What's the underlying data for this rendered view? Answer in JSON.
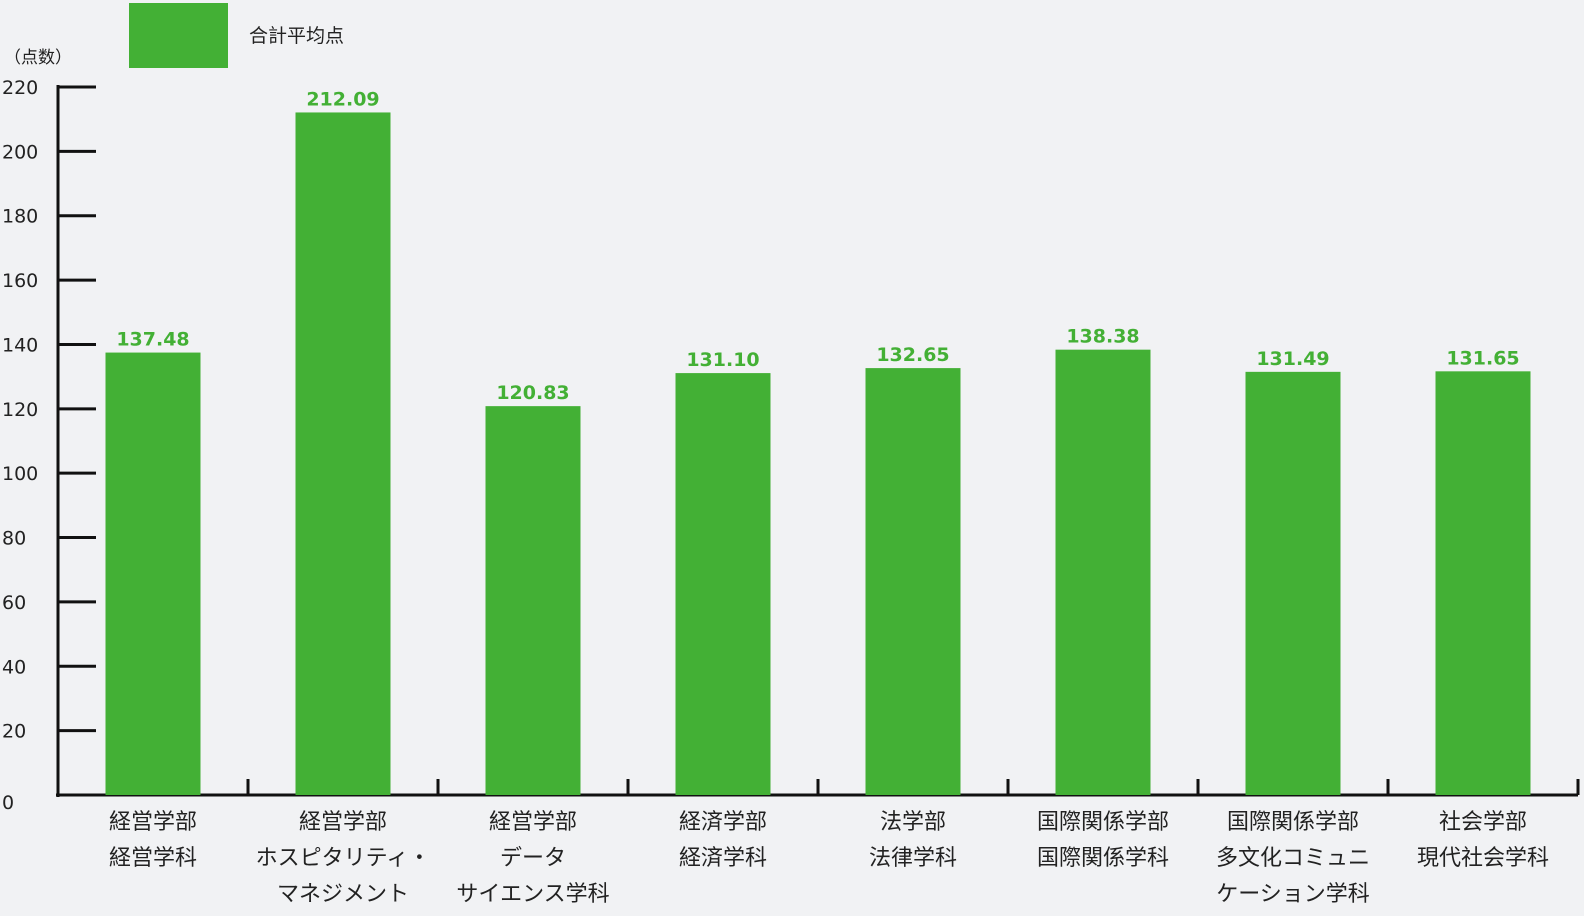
{
  "chart_data": {
    "type": "bar",
    "ylabel": "（点数）",
    "ylim": [
      0,
      220
    ],
    "yticks": [
      0,
      20,
      40,
      60,
      80,
      100,
      120,
      140,
      160,
      180,
      200,
      220
    ],
    "grid": false,
    "legend_position": "top-left",
    "categories": [
      [
        "経営学部",
        "経営学科"
      ],
      [
        "経営学部",
        "ホスピタリティ・",
        "マネジメント"
      ],
      [
        "経営学部",
        "データ",
        "サイエンス学科"
      ],
      [
        "経済学部",
        "経済学科"
      ],
      [
        "法学部",
        "法律学科"
      ],
      [
        "国際関係学部",
        "国際関係学科"
      ],
      [
        "国際関係学部",
        "多文化コミュニ",
        "ケーション学科"
      ],
      [
        "社会学部",
        "現代社会学科"
      ]
    ],
    "series": [
      {
        "name": "合計平均点",
        "color": "#43b035",
        "values": [
          137.48,
          212.09,
          120.83,
          131.1,
          132.65,
          138.38,
          131.49,
          131.65
        ],
        "labels": [
          "137.48",
          "212.09",
          "120.83",
          "131.10",
          "132.65",
          "138.38",
          "131.49",
          "131.65"
        ]
      }
    ]
  }
}
